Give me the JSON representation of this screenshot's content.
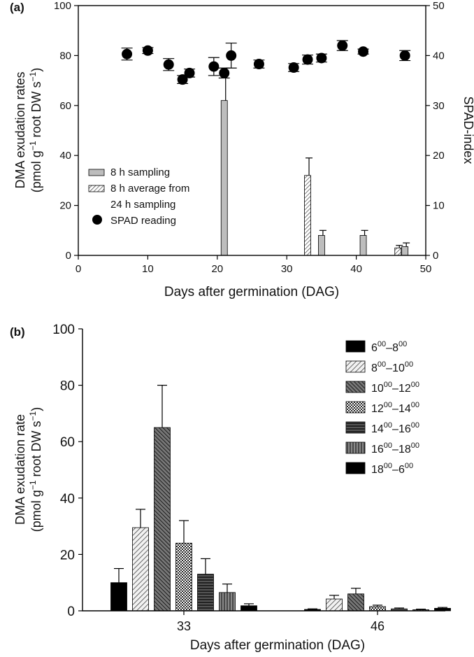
{
  "chart_data": [
    {
      "type": "bar",
      "panel_label": "(a)",
      "xlabel": "Days after germination (DAG)",
      "ylabel_line1": "DMA exudation rates",
      "ylabel_line2_parts": [
        "(pmol g",
        "−1",
        " root DW s",
        "−1",
        ")"
      ],
      "y2label": "SPAD-index",
      "xlim": [
        0,
        50
      ],
      "ylim": [
        0,
        100
      ],
      "y2lim": [
        0,
        50
      ],
      "xticks": [
        0,
        10,
        20,
        30,
        40,
        50
      ],
      "yticks": [
        0,
        20,
        40,
        60,
        80,
        100
      ],
      "y2ticks": [
        0,
        10,
        20,
        30,
        40,
        50
      ],
      "legend": [
        {
          "label": "8 h sampling",
          "style": "gray"
        },
        {
          "label": "8 h average from",
          "label2": "24 h sampling",
          "style": "hatch"
        },
        {
          "label": "SPAD reading",
          "style": "dot"
        }
      ],
      "series": [
        {
          "name": "8 h sampling",
          "style": "gray",
          "points": [
            {
              "x": 21,
              "y": 62,
              "err": 11
            },
            {
              "x": 35,
              "y": 8,
              "err": 2
            },
            {
              "x": 41,
              "y": 8,
              "err": 2
            },
            {
              "x": 47,
              "y": 3.5,
              "err": 1.5
            }
          ]
        },
        {
          "name": "8 h average from 24 h sampling",
          "style": "hatch",
          "points": [
            {
              "x": 33,
              "y": 32,
              "err": 7
            },
            {
              "x": 46,
              "y": 3,
              "err": 1
            }
          ]
        },
        {
          "name": "SPAD reading",
          "axis": "right",
          "style": "dot",
          "points": [
            {
              "x": 7,
              "y": 40.3,
              "err": 1.2
            },
            {
              "x": 10,
              "y": 41,
              "err": 0.6
            },
            {
              "x": 13,
              "y": 38.2,
              "err": 1.2
            },
            {
              "x": 15,
              "y": 35.2,
              "err": 0.8
            },
            {
              "x": 16,
              "y": 36.5,
              "err": 0.8
            },
            {
              "x": 19.5,
              "y": 37.8,
              "err": 1.8
            },
            {
              "x": 21,
              "y": 36.5,
              "err": 1
            },
            {
              "x": 22,
              "y": 40,
              "err": 2.5
            },
            {
              "x": 26,
              "y": 38.3,
              "err": 0.8
            },
            {
              "x": 31,
              "y": 37.6,
              "err": 0.8
            },
            {
              "x": 33,
              "y": 39.2,
              "err": 0.9
            },
            {
              "x": 35,
              "y": 39.5,
              "err": 0.8
            },
            {
              "x": 38,
              "y": 42,
              "err": 1
            },
            {
              "x": 41,
              "y": 40.8,
              "err": 0.5
            },
            {
              "x": 47,
              "y": 40,
              "err": 1
            }
          ]
        }
      ]
    },
    {
      "type": "bar",
      "panel_label": "(b)",
      "xlabel": "Days after germination (DAG)",
      "ylabel_line1": "DMA exudation rate",
      "ylabel_line2_parts": [
        "(pmol g",
        "−1",
        " root DW s",
        "−1",
        ")"
      ],
      "ylim": [
        0,
        100
      ],
      "yticks": [
        0,
        20,
        40,
        60,
        80,
        100
      ],
      "categories": [
        "33",
        "46"
      ],
      "series": [
        {
          "name": "6:00–8:00",
          "start": "6",
          "end": "8",
          "style": "black",
          "values": [
            10,
            0.5
          ],
          "errors": [
            5,
            0.2
          ]
        },
        {
          "name": "8:00–10:00",
          "start": "8",
          "end": "10",
          "style": "hatch-light",
          "values": [
            29.5,
            4.2
          ],
          "errors": [
            6.5,
            1.3
          ]
        },
        {
          "name": "10:00–12:00",
          "start": "10",
          "end": "12",
          "style": "hatch-dark",
          "values": [
            65,
            6
          ],
          "errors": [
            15,
            2
          ]
        },
        {
          "name": "12:00–14:00",
          "start": "12",
          "end": "14",
          "style": "check",
          "values": [
            24,
            1.5
          ],
          "errors": [
            8,
            0.5
          ]
        },
        {
          "name": "14:00–16:00",
          "start": "14",
          "end": "16",
          "style": "hlines",
          "values": [
            13,
            0.7
          ],
          "errors": [
            5.5,
            0.3
          ]
        },
        {
          "name": "16:00–18:00",
          "start": "16",
          "end": "18",
          "style": "vlines",
          "values": [
            6.5,
            0.4
          ],
          "errors": [
            3,
            0.2
          ]
        },
        {
          "name": "18:00–6:00",
          "start": "18",
          "end": "6",
          "style": "black",
          "values": [
            1.8,
            0.9
          ],
          "errors": [
            0.7,
            0.3
          ]
        }
      ]
    }
  ]
}
